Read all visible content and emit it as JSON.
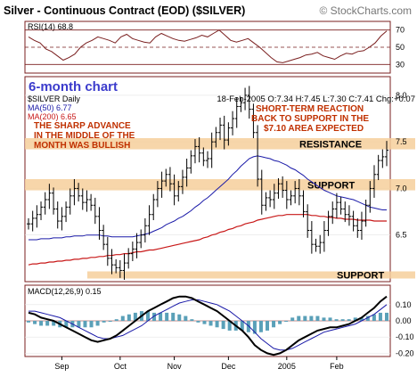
{
  "header": {
    "title": "Silver - Continuous Contract (EOD) ($SILVER)",
    "copyright": "© StockCharts.com"
  },
  "colors": {
    "frame": "#7a1f1f",
    "resistance_zone": "#f6cf9b",
    "price_bar": "#000000",
    "ma50": "#1a1aa8",
    "ma200": "#c81818",
    "annotation_red": "#c03000",
    "label_blue": "#3b3bcc",
    "rsi_line": "#7a1f1f",
    "macd_line": "#000000",
    "signal_line": "#1a1aa8",
    "histogram": "#5aa0b8"
  },
  "chart_data": [
    {
      "type": "line",
      "title": "RSI(14) 68.8",
      "ylim": [
        20,
        80
      ],
      "y_ticks": [
        "70",
        "50",
        "30"
      ],
      "reference_lines": [
        70,
        50,
        30
      ],
      "series": [
        {
          "name": "RSI(14)",
          "values": [
            62,
            58,
            55,
            48,
            45,
            40,
            35,
            38,
            42,
            50,
            55,
            58,
            62,
            60,
            58,
            55,
            62,
            65,
            60,
            58,
            56,
            55,
            62,
            66,
            63,
            60,
            58,
            57,
            59,
            61,
            64,
            62,
            66,
            70,
            64,
            58,
            56,
            58,
            60,
            55,
            50,
            44,
            38,
            33,
            32,
            34,
            36,
            38,
            41,
            42,
            44,
            40,
            38,
            36,
            40,
            43,
            42,
            45,
            46,
            50,
            55,
            63,
            68.8
          ]
        }
      ]
    },
    {
      "type": "ohlc",
      "title": "$SILVER Daily",
      "legend_info": "18-Feb-2005 O:7.34 H:7.45 L:7.30 C:7.41 Chg:+0.07",
      "ma_labels": [
        "MA(50) 6.77",
        "MA(200) 6.65"
      ],
      "ylim": [
        6.0,
        8.2
      ],
      "y_ticks": [
        "8.0",
        "7.5",
        "7.0",
        "6.5"
      ],
      "x_ticks": [
        "Sep",
        "Oct",
        "Nov",
        "Dec",
        "2005",
        "Feb"
      ],
      "x_tick_positions": [
        8,
        22,
        35,
        48,
        62,
        74
      ],
      "close": [
        6.62,
        6.68,
        6.72,
        6.8,
        6.88,
        6.95,
        6.78,
        6.65,
        6.7,
        6.8,
        6.92,
        7.0,
        6.92,
        6.85,
        6.88,
        6.82,
        6.7,
        6.55,
        6.4,
        6.25,
        6.18,
        6.15,
        6.12,
        6.2,
        6.3,
        6.35,
        6.42,
        6.5,
        6.6,
        6.72,
        6.88,
        7.0,
        7.08,
        7.15,
        7.05,
        6.92,
        7.02,
        7.12,
        7.22,
        7.35,
        7.45,
        7.38,
        7.3,
        7.32,
        7.5,
        7.6,
        7.68,
        7.52,
        7.65,
        7.75,
        7.88,
        7.92,
        8.0,
        7.85,
        7.6,
        7.1,
        6.82,
        6.9,
        6.88,
        6.95,
        7.05,
        6.98,
        6.88,
        6.92,
        7.0,
        6.92,
        6.75,
        6.55,
        6.4,
        6.38,
        6.42,
        6.55,
        6.7,
        6.78,
        6.85,
        6.78,
        6.72,
        6.7,
        6.6,
        6.55,
        6.65,
        6.82,
        7.0,
        7.15,
        7.3,
        7.34,
        7.41
      ],
      "series": [
        {
          "name": "MA(50)",
          "values": [
            6.45,
            6.45,
            6.45,
            6.46,
            6.46,
            6.46,
            6.47,
            6.47,
            6.47,
            6.48,
            6.48,
            6.49,
            6.49,
            6.49,
            6.5,
            6.5,
            6.5,
            6.5,
            6.49,
            6.49,
            6.48,
            6.48,
            6.48,
            6.48,
            6.48,
            6.48,
            6.49,
            6.5,
            6.51,
            6.52,
            6.54,
            6.56,
            6.58,
            6.61,
            6.63,
            6.65,
            6.68,
            6.7,
            6.73,
            6.76,
            6.8,
            6.83,
            6.87,
            6.9,
            6.94,
            6.98,
            7.02,
            7.06,
            7.1,
            7.15,
            7.19,
            7.24,
            7.28,
            7.32,
            7.34,
            7.35,
            7.34,
            7.33,
            7.32,
            7.3,
            7.29,
            7.27,
            7.25,
            7.22,
            7.2,
            7.17,
            7.14,
            7.1,
            7.07,
            7.04,
            7.01,
            6.98,
            6.96,
            6.94,
            6.92,
            6.91,
            6.9,
            6.89,
            6.88,
            6.86,
            6.84,
            6.82,
            6.8,
            6.79,
            6.78,
            6.77,
            6.77
          ]
        },
        {
          "name": "MA(200)",
          "values": [
            6.18,
            6.19,
            6.19,
            6.2,
            6.2,
            6.21,
            6.21,
            6.22,
            6.22,
            6.23,
            6.23,
            6.24,
            6.24,
            6.25,
            6.25,
            6.26,
            6.26,
            6.27,
            6.27,
            6.28,
            6.28,
            6.29,
            6.29,
            6.3,
            6.3,
            6.31,
            6.32,
            6.32,
            6.33,
            6.34,
            6.34,
            6.35,
            6.36,
            6.37,
            6.38,
            6.39,
            6.4,
            6.41,
            6.42,
            6.43,
            6.44,
            6.45,
            6.47,
            6.48,
            6.5,
            6.51,
            6.53,
            6.54,
            6.56,
            6.57,
            6.59,
            6.6,
            6.62,
            6.63,
            6.64,
            6.66,
            6.67,
            6.68,
            6.69,
            6.7,
            6.71,
            6.71,
            6.72,
            6.72,
            6.72,
            6.72,
            6.72,
            6.72,
            6.71,
            6.71,
            6.7,
            6.7,
            6.69,
            6.69,
            6.68,
            6.68,
            6.67,
            6.67,
            6.67,
            6.66,
            6.66,
            6.66,
            6.66,
            6.65,
            6.65,
            6.65,
            6.65
          ]
        }
      ],
      "zones": [
        {
          "label": "RESISTANCE",
          "from": 7.42,
          "to": 7.54
        },
        {
          "label": "SUPPORT",
          "from": 6.98,
          "to": 7.1
        },
        {
          "label": "SUPPORT",
          "from": 6.04,
          "to": 6.11
        }
      ],
      "chart_label": "6-month chart",
      "annotations": [
        {
          "lines": [
            "THE SHARP ADVANCE",
            "IN THE MIDDLE OF THE",
            "MONTH WAS BULLISH"
          ]
        },
        {
          "lines": [
            "SHORT-TERM REACTION",
            "BACK TO SUPPORT IN THE",
            "$7.10 AREA EXPECTED"
          ]
        }
      ]
    },
    {
      "type": "line",
      "title": "MACD(12,26,9) 0.15",
      "ylim": [
        -0.22,
        0.22
      ],
      "y_ticks": [
        "0.10",
        "0.00",
        "-0.10",
        "-0.20"
      ],
      "series": [
        {
          "name": "MACD(12,26,9)",
          "values": [
            0.05,
            0.04,
            0.02,
            0.01,
            0.0,
            -0.02,
            -0.04,
            -0.06,
            -0.08,
            -0.1,
            -0.12,
            -0.13,
            -0.12,
            -0.11,
            -0.09,
            -0.06,
            -0.03,
            0.0,
            0.03,
            0.06,
            0.08,
            0.1,
            0.12,
            0.14,
            0.15,
            0.15,
            0.14,
            0.12,
            0.1,
            0.08,
            0.06,
            0.03,
            0.0,
            -0.03,
            -0.06,
            -0.1,
            -0.15,
            -0.18,
            -0.2,
            -0.21,
            -0.2,
            -0.18,
            -0.15,
            -0.12,
            -0.1,
            -0.08,
            -0.06,
            -0.05,
            -0.04,
            -0.04,
            -0.03,
            -0.02,
            0.0,
            0.02,
            0.05,
            0.08,
            0.12,
            0.15
          ]
        },
        {
          "name": "Signal",
          "values": [
            0.06,
            0.06,
            0.05,
            0.04,
            0.03,
            0.02,
            0.0,
            -0.02,
            -0.04,
            -0.06,
            -0.08,
            -0.1,
            -0.11,
            -0.11,
            -0.1,
            -0.09,
            -0.07,
            -0.05,
            -0.03,
            0.0,
            0.03,
            0.05,
            0.07,
            0.09,
            0.11,
            0.12,
            0.13,
            0.13,
            0.12,
            0.11,
            0.1,
            0.08,
            0.06,
            0.03,
            0.0,
            -0.03,
            -0.07,
            -0.11,
            -0.14,
            -0.17,
            -0.18,
            -0.18,
            -0.17,
            -0.15,
            -0.13,
            -0.11,
            -0.09,
            -0.07,
            -0.06,
            -0.05,
            -0.04,
            -0.03,
            -0.02,
            0.0,
            0.02,
            0.04,
            0.07,
            0.1
          ]
        }
      ]
    }
  ]
}
